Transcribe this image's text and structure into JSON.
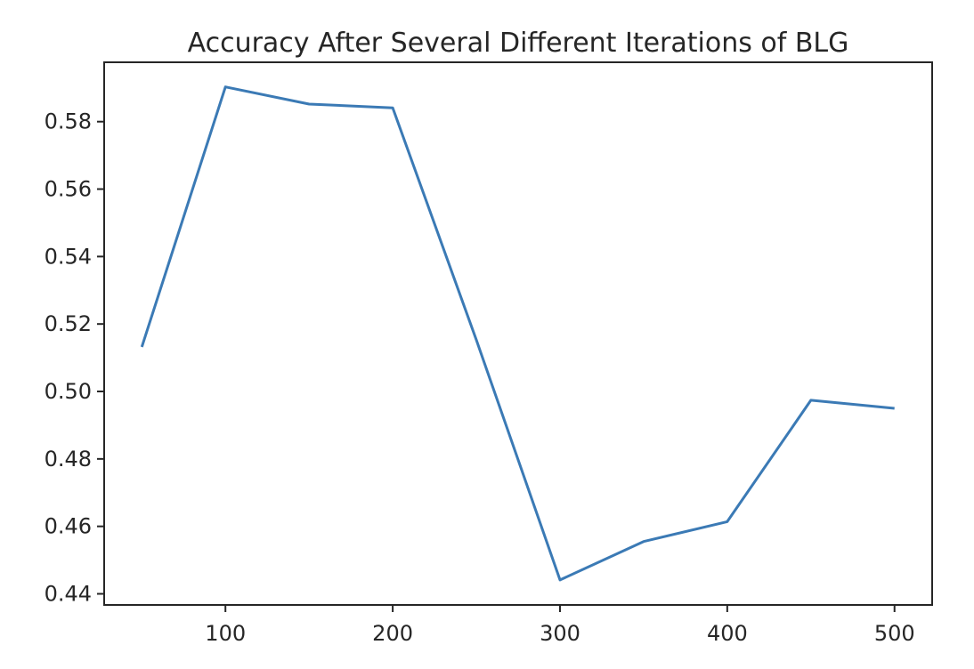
{
  "chart_data": {
    "type": "line",
    "title": "Accuracy After Several Different Iterations of BLG",
    "xlabel": "",
    "ylabel": "",
    "x": [
      50,
      100,
      150,
      200,
      250,
      300,
      350,
      400,
      450,
      500
    ],
    "series": [
      {
        "name": "accuracy",
        "color": "#3b7ab5",
        "values": [
          0.5132,
          0.5903,
          0.5852,
          0.5841,
          0.5153,
          0.4441,
          0.4555,
          0.4614,
          0.4974,
          0.495
        ]
      }
    ],
    "xlim": [
      27.5,
      522.5
    ],
    "ylim": [
      0.4367,
      0.5976
    ],
    "xticks": [
      100,
      200,
      300,
      400,
      500
    ],
    "xtick_labels": [
      "100",
      "200",
      "300",
      "400",
      "500"
    ],
    "yticks": [
      0.44,
      0.46,
      0.48,
      0.5,
      0.52,
      0.54,
      0.56,
      0.58
    ],
    "ytick_labels": [
      "0.44",
      "0.46",
      "0.48",
      "0.50",
      "0.52",
      "0.54",
      "0.56",
      "0.58"
    ],
    "grid": false,
    "legend": "none"
  }
}
